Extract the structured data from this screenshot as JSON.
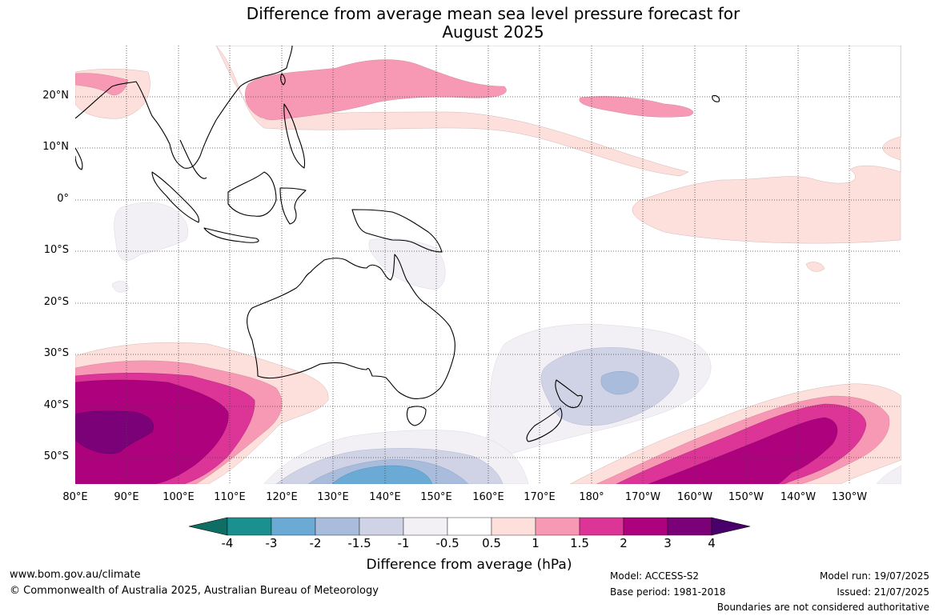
{
  "title_line1": "Difference from average mean sea level pressure forecast for",
  "title_line2": "August 2025",
  "lat_labels": [
    "20°N",
    "10°N",
    "0°",
    "10°S",
    "20°S",
    "30°S",
    "40°S",
    "50°S"
  ],
  "lon_labels": [
    "80°E",
    "90°E",
    "100°E",
    "110°E",
    "120°E",
    "130°E",
    "140°E",
    "150°E",
    "160°E",
    "170°E",
    "180°",
    "170°W",
    "160°W",
    "150°W",
    "140°W",
    "130°W"
  ],
  "colorbar": {
    "ticks": [
      "-4",
      "-3",
      "-2",
      "-1.5",
      "-1",
      "-0.5",
      "0.5",
      "1",
      "1.5",
      "2",
      "3",
      "4"
    ],
    "colors": [
      "#0f6e64",
      "#1a9090",
      "#6aaad4",
      "#a9bcdc",
      "#d0d3e6",
      "#f2f0f5",
      "#ffffff",
      "#fde0dc",
      "#f799b4",
      "#dd3497",
      "#ae017e",
      "#7a0177",
      "#49006a"
    ],
    "label": "Difference from average (hPa)"
  },
  "footer": {
    "website": "www.bom.gov.au/climate",
    "copyright": "© Commonwealth of Australia 2025, Australian Bureau of Meteorology",
    "model": "Model: ACCESS-S2",
    "base_period": "Base period: 1981-2018",
    "model_run": "Model run: 19/07/2025",
    "issued": "Issued: 21/07/2025",
    "disclaimer": "Boundaries are not considered authoritative"
  }
}
